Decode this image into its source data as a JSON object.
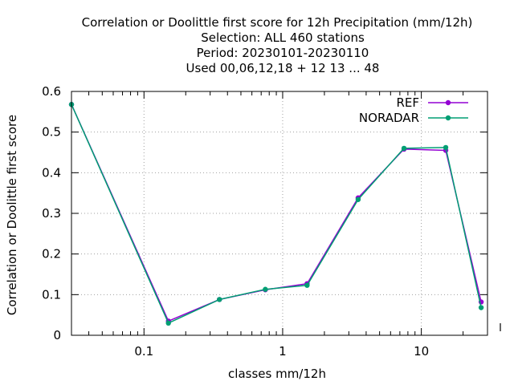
{
  "chart_data": {
    "type": "line",
    "title_lines": [
      "Correlation or Doolittle first score  for 12h Precipitation (mm/12h)",
      "Selection: ALL    460 stations",
      "Period: 20230101-20230110",
      "Used  00,06,12,18  + 12 13 ... 48"
    ],
    "xlabel": "classes mm/12h",
    "ylabel": "Correlation or Doolittle first score",
    "x_scale": "log",
    "xlim": [
      0.03,
      30
    ],
    "ylim": [
      0,
      0.6
    ],
    "x_ticks": [
      {
        "value": 0.1,
        "label": "0.1"
      },
      {
        "value": 1,
        "label": "1"
      },
      {
        "value": 10,
        "label": "10"
      }
    ],
    "y_ticks": [
      {
        "value": 0,
        "label": "0"
      },
      {
        "value": 0.1,
        "label": "0.1"
      },
      {
        "value": 0.2,
        "label": "0.2"
      },
      {
        "value": 0.3,
        "label": "0.3"
      },
      {
        "value": 0.4,
        "label": "0.4"
      },
      {
        "value": 0.5,
        "label": "0.5"
      },
      {
        "value": 0.6,
        "label": "0.6"
      }
    ],
    "grid": true,
    "legend_position": "top-right",
    "x": [
      0.03,
      0.15,
      0.35,
      0.75,
      1.5,
      3.5,
      7.5,
      15,
      27
    ],
    "series": [
      {
        "name": "REF",
        "color": "#9400d3",
        "values": [
          0.568,
          0.035,
          0.088,
          0.112,
          0.127,
          0.338,
          0.458,
          0.455,
          0.082
        ]
      },
      {
        "name": "NORADAR",
        "color": "#009e73",
        "values": [
          0.568,
          0.03,
          0.088,
          0.113,
          0.123,
          0.334,
          0.46,
          0.462,
          0.068
        ]
      }
    ]
  }
}
